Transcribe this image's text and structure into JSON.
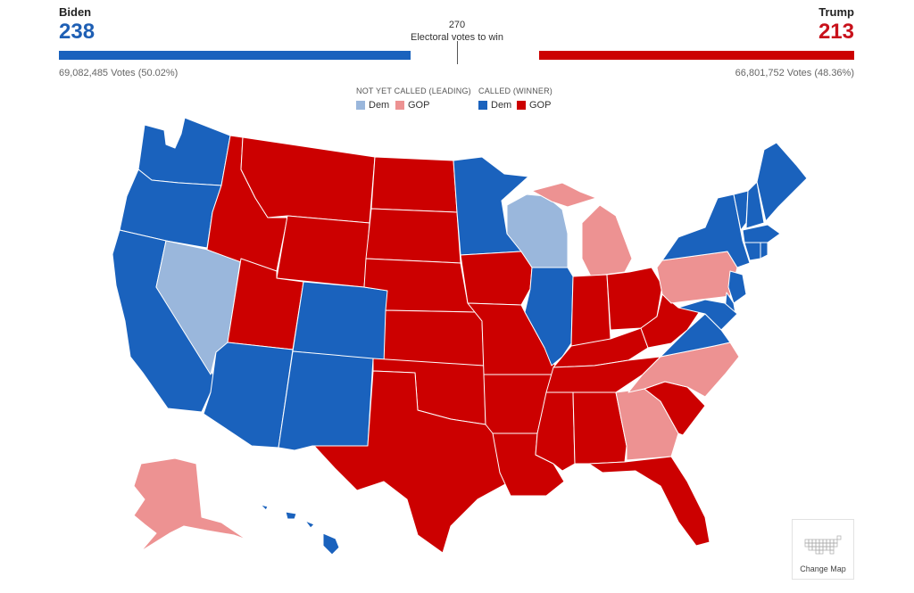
{
  "header": {
    "left": {
      "name": "Biden",
      "electoral_votes": "238",
      "popular_vote": "69,082,485 Votes (50.02%)"
    },
    "right": {
      "name": "Trump",
      "electoral_votes": "213",
      "popular_vote": "66,801,752 Votes (48.36%)"
    },
    "goal": {
      "number": "270",
      "label": "Electoral votes to win"
    },
    "bar": {
      "total": 538,
      "dem_won": 238,
      "gop_won": 213
    }
  },
  "legend": {
    "leading_title": "NOT YET CALLED (LEADING)",
    "called_title": "CALLED (WINNER)",
    "dem_label": "Dem",
    "gop_label": "GOP"
  },
  "colors": {
    "dem_called": "#1a62bd",
    "gop_called": "#cc0000",
    "dem_leading": "#9ab7dc",
    "gop_leading": "#ed9292",
    "dem_text": "#1e5fb4",
    "gop_text": "#c8111b"
  },
  "map_data": {
    "status_by_state": {
      "WA": "dem_called",
      "OR": "dem_called",
      "CA": "dem_called",
      "NV": "dem_leading",
      "ID": "gop_called",
      "MT": "gop_called",
      "WY": "gop_called",
      "UT": "gop_called",
      "AZ": "dem_called",
      "CO": "dem_called",
      "NM": "dem_called",
      "ND": "gop_called",
      "SD": "gop_called",
      "NE": "gop_called",
      "KS": "gop_called",
      "OK": "gop_called",
      "TX": "gop_called",
      "MN": "dem_called",
      "IA": "gop_called",
      "MO": "gop_called",
      "AR": "gop_called",
      "LA": "gop_called",
      "WI": "dem_leading",
      "IL": "dem_called",
      "MI": "gop_leading",
      "IN": "gop_called",
      "OH": "gop_called",
      "KY": "gop_called",
      "TN": "gop_called",
      "MS": "gop_called",
      "AL": "gop_called",
      "GA": "gop_leading",
      "FL": "gop_called",
      "SC": "gop_called",
      "NC": "gop_leading",
      "VA": "dem_called",
      "WV": "gop_called",
      "PA": "gop_leading",
      "NY": "dem_called",
      "VT": "dem_called",
      "NH": "dem_called",
      "ME": "dem_called",
      "MA": "dem_called",
      "CT": "dem_called",
      "RI": "dem_called",
      "NJ": "dem_called",
      "DE": "dem_called",
      "MD": "dem_called",
      "AK": "gop_leading",
      "HI": "dem_called"
    }
  },
  "change_map": {
    "label": "Change Map",
    "icon": "us-grid-map-icon"
  }
}
